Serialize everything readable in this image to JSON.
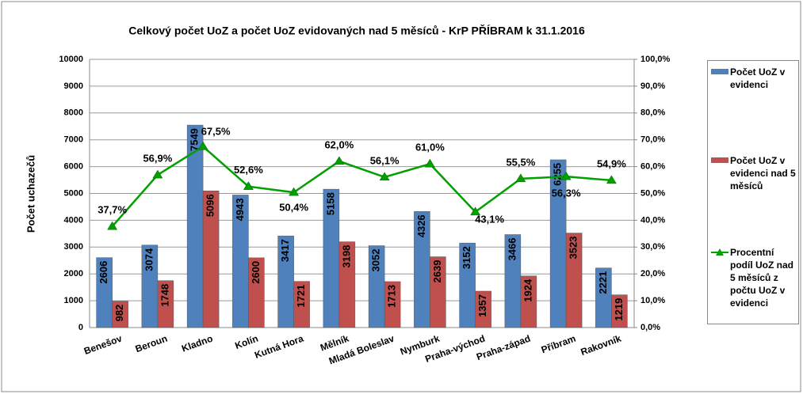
{
  "chart_data": {
    "type": "bar-line",
    "title": "Celkový počet UoZ a počet UoZ evidovaných nad 5 měsíců - KrP PŘÍBRAM k 31.1.2016",
    "ylabel": "Počet uchazečů",
    "categories": [
      "Benešov",
      "Beroun",
      "Kladno",
      "Kolín",
      "Kutná Hora",
      "Mělník",
      "Mladá Boleslav",
      "Nymburk",
      "Praha-východ",
      "Praha-západ",
      "Příbram",
      "Rakovník"
    ],
    "series": [
      {
        "name": "Počet UoZ v evidenci",
        "color": "#4f81bd",
        "type": "bar",
        "values": [
          2606,
          3074,
          7549,
          4943,
          3417,
          5158,
          3052,
          4326,
          3152,
          3466,
          6255,
          2221
        ]
      },
      {
        "name": "Počet UoZ v evidenci  nad 5 měsíců",
        "color": "#c0504d",
        "type": "bar",
        "values": [
          982,
          1748,
          5096,
          2600,
          1721,
          3198,
          1713,
          2639,
          1357,
          1924,
          3523,
          1219
        ]
      },
      {
        "name": "Procentní podíl UoZ nad 5 měsíců z počtu UoZ v evidenci",
        "color": "#00a000",
        "type": "line",
        "axis": "y2",
        "values": [
          37.7,
          56.9,
          67.5,
          52.6,
          50.4,
          62.0,
          56.1,
          61.0,
          43.1,
          55.5,
          56.3,
          54.9
        ],
        "value_labels": [
          "37,7%",
          "56,9%",
          "67,5%",
          "52,6%",
          "50,4%",
          "62,0%",
          "56,1%",
          "61,0%",
          "43,1%",
          "55,5%",
          "56,3%",
          "54,9%"
        ]
      }
    ],
    "ylim": [
      0,
      10000
    ],
    "yticks": [
      0,
      1000,
      2000,
      3000,
      4000,
      5000,
      6000,
      7000,
      8000,
      9000,
      10000
    ],
    "y2lim": [
      0,
      100
    ],
    "y2ticks": [
      {
        "value": 0,
        "label": "0,0%"
      },
      {
        "value": 10,
        "label": "10,0%"
      },
      {
        "value": 20,
        "label": "20,0%"
      },
      {
        "value": 30,
        "label": "30,0%"
      },
      {
        "value": 40,
        "label": "40,0%"
      },
      {
        "value": 50,
        "label": "50,0%"
      },
      {
        "value": 60,
        "label": "60,0%"
      },
      {
        "value": 70,
        "label": "70,0%"
      },
      {
        "value": 80,
        "label": "80,0%"
      },
      {
        "value": 90,
        "label": "90,0%"
      },
      {
        "value": 100,
        "label": "100,0%"
      }
    ],
    "grid": true,
    "legend": "right"
  }
}
